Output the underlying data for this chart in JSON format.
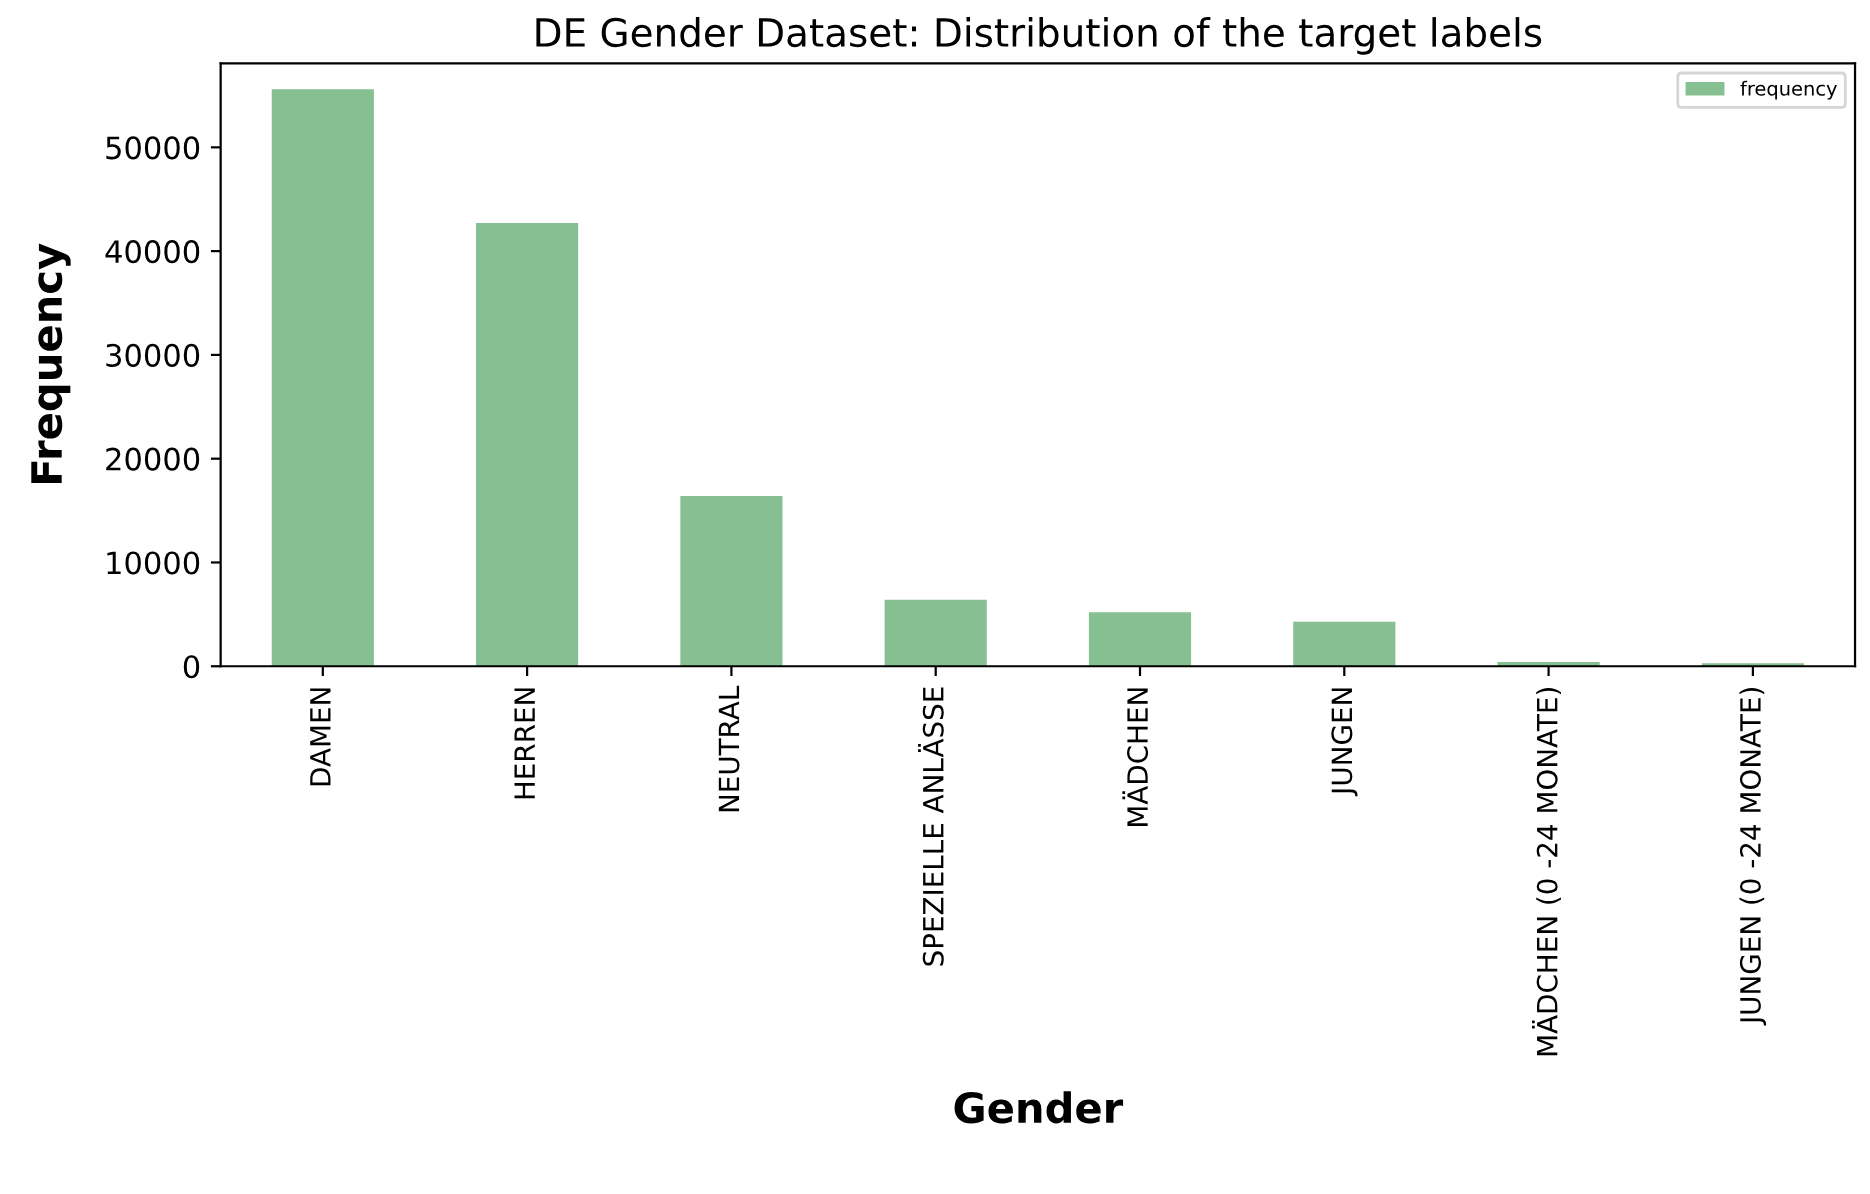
{
  "chart_data": {
    "type": "bar",
    "title": "DE Gender Dataset: Distribution of the target labels",
    "xlabel": "Gender",
    "ylabel": "Frequency",
    "categories": [
      "DAMEN",
      "HERREN",
      "NEUTRAL",
      "SPEZIELLE ANLÄSSE",
      "MÄDCHEN",
      "JUNGEN",
      "MÄDCHEN (0 -24 MONATE)",
      "JUNGEN (0 -24 MONATE)"
    ],
    "series": [
      {
        "name": "frequency",
        "color": "#86bf91",
        "values": [
          55600,
          42700,
          16400,
          6400,
          5200,
          4300,
          400,
          300
        ]
      }
    ],
    "ylim": [
      0,
      58100
    ],
    "yticks": [
      0,
      10000,
      20000,
      30000,
      40000,
      50000
    ],
    "grid": false,
    "legend": "top right"
  }
}
